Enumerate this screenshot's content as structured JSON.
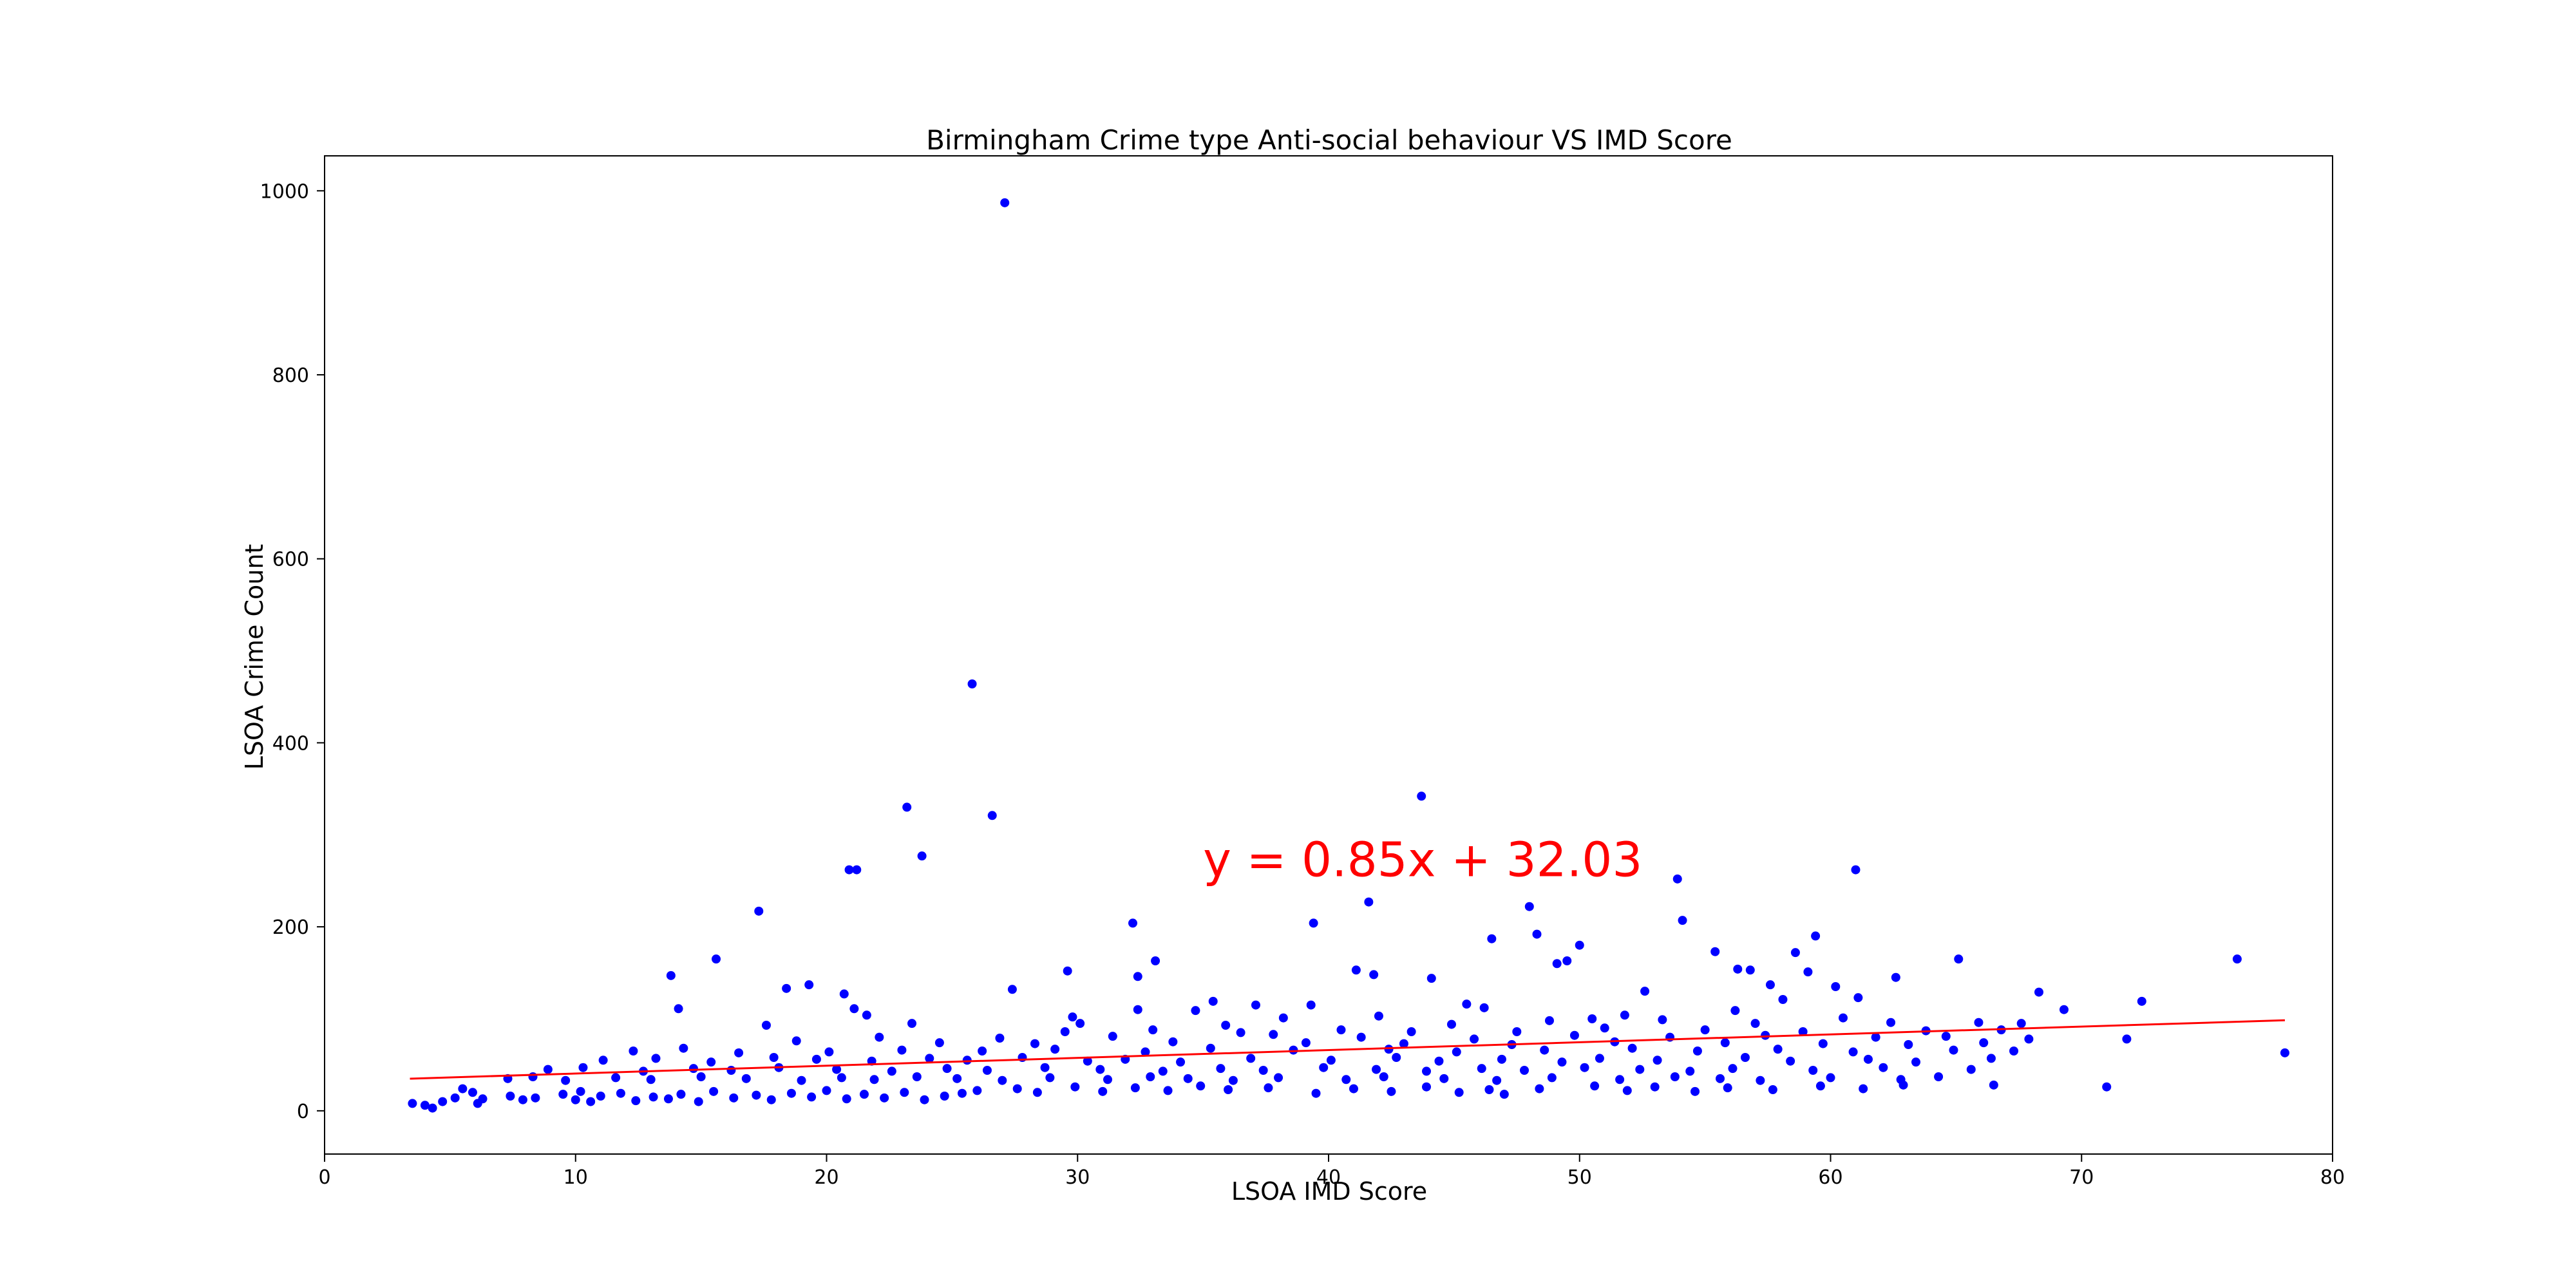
{
  "chart_data": {
    "type": "scatter",
    "title": "Birmingham Crime type Anti-social behaviour VS IMD Score",
    "xlabel": "LSOA IMD Score",
    "ylabel": "LSOA Crime Count",
    "xlim": [
      0,
      80
    ],
    "ylim": [
      -47,
      1038
    ],
    "xticks": [
      "0",
      "10",
      "20",
      "30",
      "40",
      "50",
      "60",
      "70",
      "80"
    ],
    "yticks": [
      "0",
      "200",
      "400",
      "600",
      "800",
      "1000"
    ],
    "grid": false,
    "point_color": "#0000ff",
    "regression": {
      "label": "y = 0.85x + 32.03",
      "slope": 0.85,
      "intercept": 32.03,
      "x_range": [
        3.4,
        78.1
      ],
      "color": "#ff0000",
      "label_anchor": [
        35,
        255
      ]
    },
    "points": [
      [
        27.1,
        987
      ],
      [
        25.8,
        464
      ],
      [
        43.7,
        342
      ],
      [
        23.2,
        330
      ],
      [
        26.6,
        321
      ],
      [
        23.8,
        277
      ],
      [
        20.9,
        262
      ],
      [
        21.2,
        262
      ],
      [
        61.0,
        262
      ],
      [
        53.9,
        252
      ],
      [
        41.6,
        227
      ],
      [
        48.0,
        222
      ],
      [
        17.3,
        217
      ],
      [
        54.1,
        207
      ],
      [
        32.2,
        204
      ],
      [
        39.4,
        204
      ],
      [
        48.3,
        192
      ],
      [
        59.4,
        190
      ],
      [
        46.5,
        187
      ],
      [
        50.0,
        180
      ],
      [
        55.4,
        173
      ],
      [
        58.6,
        172
      ],
      [
        49.5,
        163
      ],
      [
        33.1,
        163
      ],
      [
        15.6,
        165
      ],
      [
        65.1,
        165
      ],
      [
        76.2,
        165
      ],
      [
        49.1,
        160
      ],
      [
        41.1,
        153
      ],
      [
        56.3,
        154
      ],
      [
        56.8,
        153
      ],
      [
        29.6,
        152
      ],
      [
        59.1,
        151
      ],
      [
        41.8,
        148
      ],
      [
        13.8,
        147
      ],
      [
        32.4,
        146
      ],
      [
        44.1,
        144
      ],
      [
        62.6,
        145
      ],
      [
        19.3,
        137
      ],
      [
        57.6,
        137
      ],
      [
        60.2,
        135
      ],
      [
        18.4,
        133
      ],
      [
        27.4,
        132
      ],
      [
        68.3,
        129
      ],
      [
        52.6,
        130
      ],
      [
        20.7,
        127
      ],
      [
        58.1,
        121
      ],
      [
        61.1,
        123
      ],
      [
        72.4,
        119
      ],
      [
        35.4,
        119
      ],
      [
        37.1,
        115
      ],
      [
        39.3,
        115
      ],
      [
        45.5,
        116
      ],
      [
        21.1,
        111
      ],
      [
        32.4,
        110
      ],
      [
        34.7,
        109
      ],
      [
        14.1,
        111
      ],
      [
        46.2,
        112
      ],
      [
        56.2,
        109
      ],
      [
        21.6,
        104
      ],
      [
        29.8,
        102
      ],
      [
        38.2,
        101
      ],
      [
        42.0,
        103
      ],
      [
        50.5,
        100
      ],
      [
        51.8,
        104
      ],
      [
        60.5,
        101
      ],
      [
        65.9,
        96
      ],
      [
        69.3,
        110
      ],
      [
        23.4,
        95
      ],
      [
        17.6,
        93
      ],
      [
        30.1,
        95
      ],
      [
        35.9,
        93
      ],
      [
        44.9,
        94
      ],
      [
        48.8,
        98
      ],
      [
        53.3,
        99
      ],
      [
        57.0,
        95
      ],
      [
        62.4,
        96
      ],
      [
        67.6,
        95
      ],
      [
        29.5,
        86
      ],
      [
        33.0,
        88
      ],
      [
        36.5,
        85
      ],
      [
        40.5,
        88
      ],
      [
        43.3,
        86
      ],
      [
        47.5,
        86
      ],
      [
        51.0,
        90
      ],
      [
        55.0,
        88
      ],
      [
        58.9,
        86
      ],
      [
        63.8,
        87
      ],
      [
        66.8,
        88
      ],
      [
        22.1,
        80
      ],
      [
        26.9,
        79
      ],
      [
        31.4,
        81
      ],
      [
        37.8,
        83
      ],
      [
        41.3,
        80
      ],
      [
        45.8,
        78
      ],
      [
        49.8,
        82
      ],
      [
        53.6,
        80
      ],
      [
        57.4,
        82
      ],
      [
        61.8,
        80
      ],
      [
        64.6,
        81
      ],
      [
        67.9,
        78
      ],
      [
        71.8,
        78
      ],
      [
        18.8,
        76
      ],
      [
        24.5,
        74
      ],
      [
        28.3,
        73
      ],
      [
        33.8,
        75
      ],
      [
        39.1,
        74
      ],
      [
        43.0,
        73
      ],
      [
        47.3,
        72
      ],
      [
        51.4,
        75
      ],
      [
        55.8,
        74
      ],
      [
        59.7,
        73
      ],
      [
        63.1,
        72
      ],
      [
        66.1,
        74
      ],
      [
        12.3,
        65
      ],
      [
        14.3,
        68
      ],
      [
        16.5,
        63
      ],
      [
        20.1,
        64
      ],
      [
        23.0,
        66
      ],
      [
        26.2,
        65
      ],
      [
        29.1,
        67
      ],
      [
        32.7,
        64
      ],
      [
        35.3,
        68
      ],
      [
        38.6,
        66
      ],
      [
        42.4,
        67
      ],
      [
        45.1,
        64
      ],
      [
        48.6,
        66
      ],
      [
        52.1,
        68
      ],
      [
        54.7,
        65
      ],
      [
        57.9,
        67
      ],
      [
        60.9,
        64
      ],
      [
        64.9,
        66
      ],
      [
        67.3,
        65
      ],
      [
        11.1,
        55
      ],
      [
        13.2,
        57
      ],
      [
        15.4,
        53
      ],
      [
        17.9,
        58
      ],
      [
        19.6,
        56
      ],
      [
        21.8,
        54
      ],
      [
        24.1,
        57
      ],
      [
        25.6,
        55
      ],
      [
        27.8,
        58
      ],
      [
        30.4,
        54
      ],
      [
        31.9,
        56
      ],
      [
        34.1,
        53
      ],
      [
        36.9,
        57
      ],
      [
        40.1,
        55
      ],
      [
        42.7,
        58
      ],
      [
        44.4,
        54
      ],
      [
        46.9,
        56
      ],
      [
        49.3,
        53
      ],
      [
        50.8,
        57
      ],
      [
        53.1,
        55
      ],
      [
        56.6,
        58
      ],
      [
        58.4,
        54
      ],
      [
        61.5,
        56
      ],
      [
        63.4,
        53
      ],
      [
        66.4,
        57
      ],
      [
        8.9,
        45
      ],
      [
        10.3,
        47
      ],
      [
        12.7,
        43
      ],
      [
        14.7,
        46
      ],
      [
        16.2,
        44
      ],
      [
        18.1,
        47
      ],
      [
        20.4,
        45
      ],
      [
        22.6,
        43
      ],
      [
        24.8,
        46
      ],
      [
        26.4,
        44
      ],
      [
        28.7,
        47
      ],
      [
        30.9,
        45
      ],
      [
        33.4,
        43
      ],
      [
        35.7,
        46
      ],
      [
        37.4,
        44
      ],
      [
        39.8,
        47
      ],
      [
        41.9,
        45
      ],
      [
        43.9,
        43
      ],
      [
        46.1,
        46
      ],
      [
        47.8,
        44
      ],
      [
        50.2,
        47
      ],
      [
        52.4,
        45
      ],
      [
        54.4,
        43
      ],
      [
        56.1,
        46
      ],
      [
        59.3,
        44
      ],
      [
        62.1,
        47
      ],
      [
        65.6,
        45
      ],
      [
        7.3,
        35
      ],
      [
        8.3,
        37
      ],
      [
        9.6,
        33
      ],
      [
        11.6,
        36
      ],
      [
        13.0,
        34
      ],
      [
        15.0,
        37
      ],
      [
        16.8,
        35
      ],
      [
        19.0,
        33
      ],
      [
        20.6,
        36
      ],
      [
        21.9,
        34
      ],
      [
        23.6,
        37
      ],
      [
        25.2,
        35
      ],
      [
        27.0,
        33
      ],
      [
        28.9,
        36
      ],
      [
        31.2,
        34
      ],
      [
        32.9,
        37
      ],
      [
        34.4,
        35
      ],
      [
        36.2,
        33
      ],
      [
        38.0,
        36
      ],
      [
        40.7,
        34
      ],
      [
        42.2,
        37
      ],
      [
        44.6,
        35
      ],
      [
        46.7,
        33
      ],
      [
        48.9,
        36
      ],
      [
        51.6,
        34
      ],
      [
        53.8,
        37
      ],
      [
        55.6,
        35
      ],
      [
        57.2,
        33
      ],
      [
        60.0,
        36
      ],
      [
        62.8,
        34
      ],
      [
        64.3,
        37
      ],
      [
        3.5,
        8
      ],
      [
        4.0,
        6
      ],
      [
        4.3,
        3
      ],
      [
        4.7,
        10
      ],
      [
        5.2,
        14
      ],
      [
        5.5,
        24
      ],
      [
        5.9,
        20
      ],
      [
        6.3,
        13
      ],
      [
        6.1,
        8
      ],
      [
        7.4,
        16
      ],
      [
        7.9,
        12
      ],
      [
        8.4,
        14
      ],
      [
        9.5,
        18
      ],
      [
        10.0,
        12
      ],
      [
        10.2,
        21
      ],
      [
        10.6,
        10
      ],
      [
        11.0,
        16
      ],
      [
        11.8,
        19
      ],
      [
        12.4,
        11
      ],
      [
        13.1,
        15
      ],
      [
        13.7,
        13
      ],
      [
        14.2,
        18
      ],
      [
        14.9,
        10
      ],
      [
        15.5,
        21
      ],
      [
        16.3,
        14
      ],
      [
        17.2,
        17
      ],
      [
        17.8,
        12
      ],
      [
        18.6,
        19
      ],
      [
        19.4,
        15
      ],
      [
        20.0,
        22
      ],
      [
        20.8,
        13
      ],
      [
        21.5,
        18
      ],
      [
        22.3,
        14
      ],
      [
        23.1,
        20
      ],
      [
        23.9,
        12
      ],
      [
        24.7,
        16
      ],
      [
        25.4,
        19
      ],
      [
        26.0,
        22
      ],
      [
        27.6,
        24
      ],
      [
        28.4,
        20
      ],
      [
        29.9,
        26
      ],
      [
        31.0,
        21
      ],
      [
        32.3,
        25
      ],
      [
        33.6,
        22
      ],
      [
        34.9,
        27
      ],
      [
        36.0,
        23
      ],
      [
        37.6,
        25
      ],
      [
        39.5,
        19
      ],
      [
        41.0,
        24
      ],
      [
        42.5,
        21
      ],
      [
        43.9,
        26
      ],
      [
        45.2,
        20
      ],
      [
        46.4,
        23
      ],
      [
        47.0,
        18
      ],
      [
        48.4,
        24
      ],
      [
        50.6,
        27
      ],
      [
        51.9,
        22
      ],
      [
        53.0,
        26
      ],
      [
        54.6,
        21
      ],
      [
        55.9,
        25
      ],
      [
        57.7,
        23
      ],
      [
        59.6,
        27
      ],
      [
        61.3,
        24
      ],
      [
        62.9,
        28
      ],
      [
        66.5,
        28
      ],
      [
        71.0,
        26
      ],
      [
        78.1,
        63
      ]
    ]
  }
}
